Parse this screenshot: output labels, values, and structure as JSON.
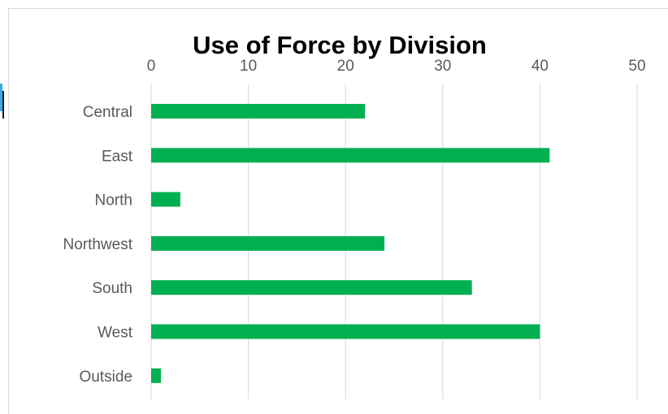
{
  "chart_data": {
    "type": "bar",
    "orientation": "horizontal",
    "title": "Use of Force by Division",
    "xlabel": "",
    "ylabel": "",
    "categories": [
      "Central",
      "East",
      "North",
      "Northwest",
      "South",
      "West",
      "Outside"
    ],
    "values": [
      22,
      41,
      3,
      24,
      33,
      40,
      1
    ],
    "xlim": [
      0,
      50
    ],
    "x_ticks": [
      0,
      10,
      20,
      30,
      40,
      50
    ],
    "x_axis_position": "top",
    "grid": true,
    "legend": "none",
    "bar_color": "#00b050"
  }
}
